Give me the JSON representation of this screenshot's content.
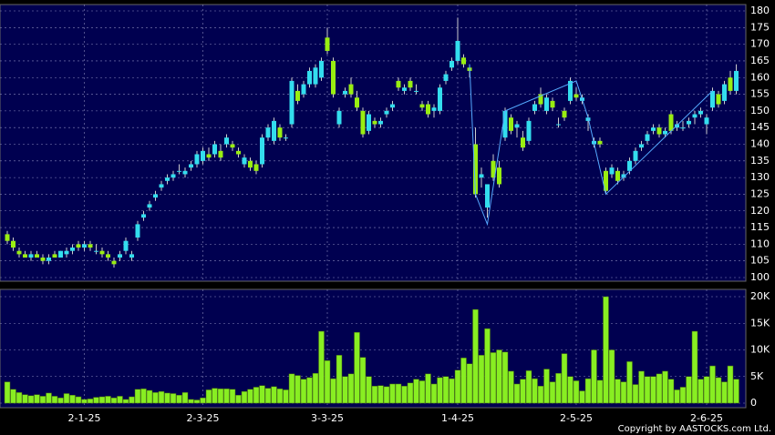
{
  "chart_data": {
    "type": "candlestick",
    "categories": [
      null,
      null,
      null,
      null,
      null,
      null,
      null,
      null,
      null,
      null,
      null,
      null,
      null,
      "2-1-25",
      null,
      null,
      null,
      null,
      null,
      null,
      null,
      null,
      null,
      null,
      null,
      null,
      null,
      null,
      null,
      null,
      null,
      null,
      null,
      "2-3-25",
      null,
      null,
      null,
      null,
      null,
      null,
      null,
      null,
      null,
      null,
      null,
      null,
      null,
      null,
      null,
      null,
      null,
      null,
      null,
      null,
      "3-3-25",
      null,
      null,
      null,
      null,
      null,
      null,
      null,
      null,
      null,
      null,
      null,
      null,
      null,
      null,
      null,
      null,
      null,
      null,
      null,
      null,
      null,
      "1-4-25",
      null,
      null,
      null,
      null,
      null,
      null,
      null,
      null,
      null,
      null,
      null,
      null,
      null,
      null,
      null,
      null,
      null,
      null,
      null,
      "2-5-25",
      null,
      null,
      null,
      null,
      null,
      null,
      null,
      null,
      null,
      null,
      null,
      null,
      null,
      null,
      null,
      null,
      null,
      null,
      null,
      null,
      null,
      "2-6-25",
      null,
      null,
      null,
      null,
      null
    ],
    "ohlc": [
      [
        113,
        114,
        110,
        111
      ],
      [
        111,
        112,
        108,
        109
      ],
      [
        108,
        109,
        106,
        107
      ],
      [
        107,
        108,
        106,
        106
      ],
      [
        106,
        108,
        105,
        107
      ],
      [
        107,
        108,
        106,
        106
      ],
      [
        106,
        107,
        104,
        105
      ],
      [
        105,
        107,
        104,
        106
      ],
      [
        107,
        108,
        106,
        106
      ],
      [
        106,
        108,
        106,
        108
      ],
      [
        107,
        109,
        106,
        108
      ],
      [
        108,
        110,
        107,
        109
      ],
      [
        110,
        111,
        108,
        109
      ],
      [
        109,
        111,
        108,
        110
      ],
      [
        110,
        111,
        108,
        109
      ],
      [
        108,
        110,
        107,
        108
      ],
      [
        108,
        109,
        106,
        107
      ],
      [
        107,
        108,
        105,
        106
      ],
      [
        105,
        106,
        103,
        104
      ],
      [
        106,
        108,
        105,
        107
      ],
      [
        108,
        112,
        107,
        111
      ],
      [
        106,
        108,
        105,
        107
      ],
      [
        112,
        117,
        111,
        116
      ],
      [
        118,
        120,
        117,
        119
      ],
      [
        121,
        123,
        120,
        122
      ],
      [
        124,
        126,
        123,
        125
      ],
      [
        127,
        129,
        126,
        128
      ],
      [
        129,
        131,
        128,
        130
      ],
      [
        130,
        132,
        129,
        131
      ],
      [
        132,
        134,
        131,
        132
      ],
      [
        131,
        133,
        130,
        132
      ],
      [
        133,
        135,
        132,
        134
      ],
      [
        134,
        138,
        133,
        137
      ],
      [
        135,
        139,
        134,
        138
      ],
      [
        137,
        139,
        135,
        136
      ],
      [
        137,
        141,
        136,
        140
      ],
      [
        138,
        140,
        135,
        136
      ],
      [
        140,
        143,
        139,
        142
      ],
      [
        140,
        141,
        138,
        139
      ],
      [
        138,
        139,
        136,
        137
      ],
      [
        134,
        137,
        133,
        136
      ],
      [
        135,
        136,
        132,
        133
      ],
      [
        134,
        135,
        131,
        132
      ],
      [
        134,
        143,
        133,
        142
      ],
      [
        142,
        146,
        141,
        145
      ],
      [
        141,
        148,
        140,
        147
      ],
      [
        145,
        146,
        141,
        142
      ],
      [
        142,
        143,
        141,
        142
      ],
      [
        146,
        160,
        145,
        159
      ],
      [
        156,
        158,
        152,
        153
      ],
      [
        155,
        159,
        154,
        158
      ],
      [
        158,
        163,
        157,
        162
      ],
      [
        158,
        164,
        157,
        163
      ],
      [
        160,
        166,
        159,
        165
      ],
      [
        172,
        175,
        167,
        168
      ],
      [
        165,
        166,
        154,
        155
      ],
      [
        146,
        151,
        145,
        150
      ],
      [
        155,
        157,
        154,
        156
      ],
      [
        158,
        160,
        154,
        155
      ],
      [
        154,
        156,
        150,
        151
      ],
      [
        150,
        151,
        142,
        143
      ],
      [
        144,
        150,
        143,
        149
      ],
      [
        147,
        148,
        145,
        146
      ],
      [
        146,
        148,
        145,
        147
      ],
      [
        149,
        151,
        148,
        150
      ],
      [
        151,
        153,
        150,
        152
      ],
      [
        159,
        160,
        156,
        157
      ],
      [
        156,
        158,
        155,
        157
      ],
      [
        159,
        160,
        156,
        157
      ],
      [
        156,
        158,
        155,
        156
      ],
      [
        152,
        153,
        150,
        151
      ],
      [
        152,
        153,
        148,
        149
      ],
      [
        150,
        152,
        148,
        151
      ],
      [
        150,
        158,
        149,
        157
      ],
      [
        159,
        162,
        158,
        161
      ],
      [
        163,
        166,
        162,
        165
      ],
      [
        165,
        178,
        164,
        171
      ],
      [
        166,
        167,
        163,
        164
      ],
      [
        163,
        164,
        160,
        162
      ],
      [
        140,
        145,
        124,
        125
      ],
      [
        130,
        133,
        127,
        131
      ],
      [
        121,
        128,
        118,
        128
      ],
      [
        135,
        137,
        129,
        130
      ],
      [
        133,
        135,
        127,
        128
      ],
      [
        142,
        151,
        141,
        150
      ],
      [
        148,
        149,
        143,
        144
      ],
      [
        145,
        147,
        142,
        146
      ],
      [
        142,
        144,
        138,
        139
      ],
      [
        141,
        148,
        140,
        147
      ],
      [
        150,
        153,
        149,
        152
      ],
      [
        155,
        157,
        151,
        152
      ],
      [
        150,
        155,
        149,
        154
      ],
      [
        153,
        154,
        150,
        151
      ],
      [
        146,
        148,
        145,
        146
      ],
      [
        150,
        151,
        147,
        148
      ],
      [
        153,
        160,
        152,
        159
      ],
      [
        155,
        157,
        153,
        154
      ],
      [
        153,
        155,
        152,
        154
      ],
      [
        147,
        149,
        144,
        148
      ],
      [
        140,
        142,
        139,
        141
      ],
      [
        141,
        142,
        139,
        140
      ],
      [
        132,
        133,
        125,
        126
      ],
      [
        131,
        134,
        130,
        133
      ],
      [
        132,
        133,
        128,
        129
      ],
      [
        130,
        132,
        129,
        131
      ],
      [
        132,
        136,
        131,
        135
      ],
      [
        135,
        139,
        134,
        138
      ],
      [
        139,
        141,
        138,
        140
      ],
      [
        141,
        144,
        140,
        143
      ],
      [
        144,
        146,
        143,
        145
      ],
      [
        145,
        146,
        142,
        143
      ],
      [
        143,
        145,
        142,
        144
      ],
      [
        149,
        150,
        143,
        144
      ],
      [
        145,
        147,
        144,
        146
      ],
      [
        145,
        147,
        144,
        145
      ],
      [
        146,
        148,
        145,
        147
      ],
      [
        148,
        150,
        146,
        149
      ],
      [
        149,
        151,
        148,
        150
      ],
      [
        146,
        149,
        143,
        148
      ],
      [
        151,
        157,
        150,
        156
      ],
      [
        155,
        156,
        151,
        152
      ],
      [
        153,
        159,
        152,
        158
      ],
      [
        160,
        162,
        155,
        156
      ],
      [
        156,
        164,
        155,
        162
      ]
    ],
    "up_color": "#33ddee",
    "down_color": "#99ee11",
    "ylim": [
      100,
      180
    ],
    "yticks": [
      100,
      105,
      110,
      115,
      120,
      125,
      130,
      135,
      140,
      145,
      150,
      155,
      160,
      165,
      170,
      175,
      180
    ],
    "grid": true,
    "trend_line": {
      "x": [
        78,
        79,
        81,
        84,
        96,
        98,
        101,
        119
      ],
      "values": [
        164,
        125,
        116,
        150,
        159,
        148,
        125,
        156
      ],
      "color": "#55aaff"
    },
    "volume": {
      "color": "#88ee22",
      "values": [
        4000,
        2600,
        2000,
        1600,
        1400,
        1600,
        1300,
        1900,
        1300,
        1000,
        1800,
        1500,
        1200,
        700,
        800,
        1100,
        1200,
        1300,
        1000,
        1300,
        700,
        1200,
        2600,
        2700,
        2400,
        2000,
        2200,
        1900,
        1800,
        1500,
        2000,
        700,
        600,
        1000,
        2500,
        2800,
        2700,
        2700,
        2600,
        1500,
        2200,
        2600,
        3000,
        3300,
        2800,
        3100,
        2700,
        2500,
        5500,
        5200,
        4500,
        4800,
        5600,
        13500,
        8000,
        4600,
        9000,
        5000,
        5500,
        13300,
        8600,
        5000,
        3200,
        3300,
        3100,
        3600,
        3600,
        3200,
        3800,
        4500,
        4200,
        5500,
        3600,
        4800,
        5000,
        4600,
        6200,
        8500,
        7400,
        17600,
        9000,
        14000,
        9500,
        10000,
        9600,
        6000,
        3600,
        4500,
        6100,
        4600,
        3200,
        6400,
        4000,
        5600,
        9300,
        5000,
        4200,
        2300,
        4600,
        10000,
        4300,
        20000,
        10000,
        4500,
        4000,
        7800,
        3500,
        6000,
        5000,
        5000,
        5500,
        6000,
        4500,
        2500,
        3000,
        5000,
        13500,
        4500,
        5000,
        7000,
        4800,
        4000,
        7000,
        4500
      ],
      "ylim": [
        0,
        20000
      ],
      "yticks": [
        0,
        {
          "value": 5000,
          "label": "5K"
        },
        {
          "value": 10000,
          "label": "10K"
        },
        {
          "value": 15000,
          "label": "15K"
        },
        {
          "value": 20000,
          "label": "20K"
        }
      ]
    }
  },
  "copyright": "Copyright by AASTOCKS.com Ltd."
}
